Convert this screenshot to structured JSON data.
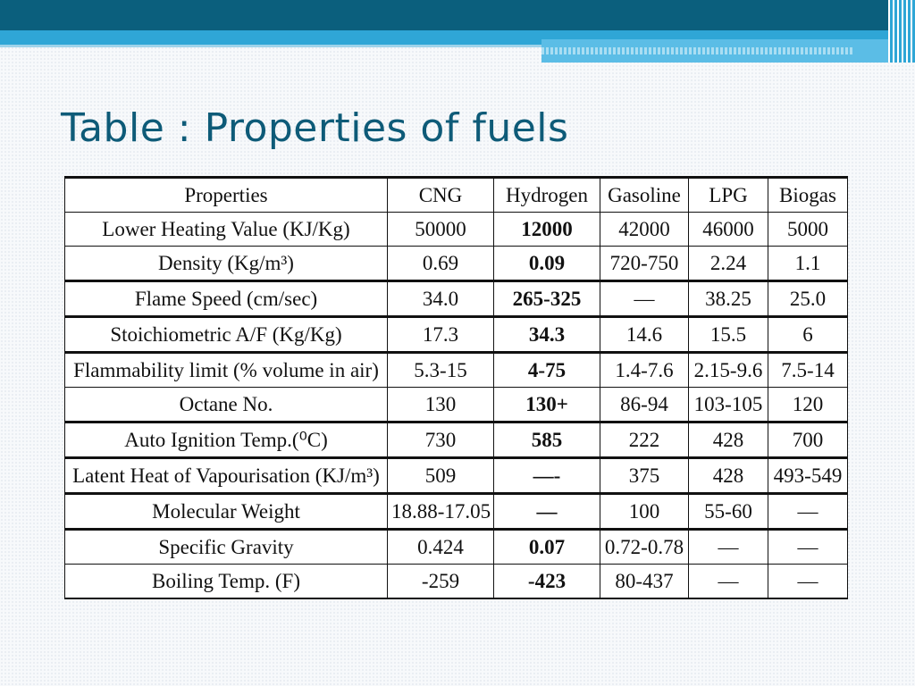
{
  "slide": {
    "title": "Table : Properties of fuels"
  },
  "table": {
    "headers": [
      "Properties",
      "CNG",
      "Hydrogen",
      "Gasoline",
      "LPG",
      "Biogas"
    ],
    "rows": [
      [
        "Lower Heating Value (KJ/Kg)",
        "50000",
        "12000",
        "42000",
        "46000",
        "5000"
      ],
      [
        "Density (Kg/m³)",
        "0.69",
        "0.09",
        "720-750",
        "2.24",
        "1.1"
      ],
      [
        "Flame Speed (cm/sec)",
        "34.0",
        "265-325",
        "—",
        "38.25",
        "25.0"
      ],
      [
        "Stoichiometric A/F (Kg/Kg)",
        "17.3",
        "34.3",
        "14.6",
        "15.5",
        "6"
      ],
      [
        "Flammability limit (% volume in air)",
        "5.3-15",
        "4-75",
        "1.4-7.6",
        "2.15-9.6",
        "7.5-14"
      ],
      [
        "Octane No.",
        "130",
        "130+",
        "86-94",
        "103-105",
        "120"
      ],
      [
        "Auto Ignition Temp.(⁰C)",
        "730",
        "585",
        "222",
        "428",
        "700"
      ],
      [
        "Latent Heat of Vapourisation (KJ/m³)",
        "509",
        "—-",
        "375",
        "428",
        "493-549"
      ],
      [
        "Molecular Weight",
        "18.88-17.05",
        "—",
        "100",
        "55-60",
        "—"
      ],
      [
        "Specific Gravity",
        "0.424",
        "0.07",
        "0.72-0.78",
        "—",
        "—"
      ],
      [
        "Boiling Temp. (F)",
        "-259",
        "-423",
        "80-437",
        "—",
        "—"
      ]
    ]
  },
  "colors": {
    "title": "#0e5b78",
    "header_dark": "#0b5f7d",
    "header_light": "#2fa6d6"
  }
}
